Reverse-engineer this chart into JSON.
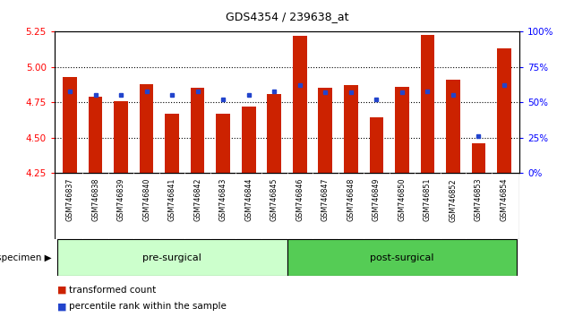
{
  "title": "GDS4354 / 239638_at",
  "samples": [
    "GSM746837",
    "GSM746838",
    "GSM746839",
    "GSM746840",
    "GSM746841",
    "GSM746842",
    "GSM746843",
    "GSM746844",
    "GSM746845",
    "GSM746846",
    "GSM746847",
    "GSM746848",
    "GSM746849",
    "GSM746850",
    "GSM746851",
    "GSM746852",
    "GSM746853",
    "GSM746854"
  ],
  "transformed_count": [
    4.93,
    4.79,
    4.76,
    4.88,
    4.67,
    4.85,
    4.67,
    4.72,
    4.81,
    5.22,
    4.85,
    4.87,
    4.64,
    4.86,
    5.23,
    4.91,
    4.46,
    5.13
  ],
  "percentile_rank": [
    58,
    55,
    55,
    58,
    55,
    58,
    52,
    55,
    58,
    62,
    57,
    57,
    52,
    57,
    58,
    55,
    26,
    62
  ],
  "pre_surgical_count": 9,
  "post_surgical_count": 9,
  "ylim_left": [
    4.25,
    5.25
  ],
  "ylim_right": [
    0,
    100
  ],
  "yticks_left": [
    4.25,
    4.5,
    4.75,
    5.0,
    5.25
  ],
  "yticks_right": [
    0,
    25,
    50,
    75,
    100
  ],
  "gridlines": [
    4.5,
    4.75,
    5.0
  ],
  "bar_color": "#cc2200",
  "marker_color": "#2244cc",
  "pre_color": "#ccffcc",
  "post_color": "#55cc55",
  "xtick_bg_color": "#cccccc",
  "legend_marker_red": "transformed count",
  "legend_marker_blue": "percentile rank within the sample",
  "group_label": "specimen",
  "group1_label": "pre-surgical",
  "group2_label": "post-surgical"
}
